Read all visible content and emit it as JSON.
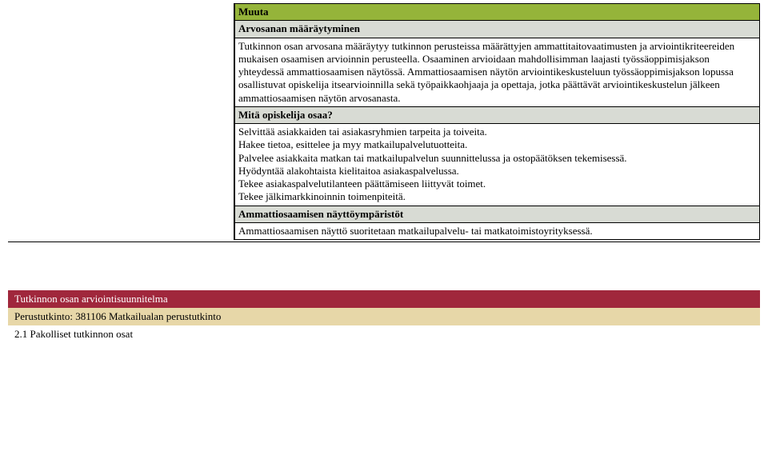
{
  "table": {
    "muuta": "Muuta",
    "arvosanan_header": "Arvosanan määräytyminen",
    "arvosanan_body": "Tutkinnon osan arvosana määräytyy tutkinnon perusteissa määrättyjen ammattitaitovaatimusten ja arviointikriteereiden mukaisen osaamisen arvioinnin perusteella. Osaaminen arvioidaan mahdollisimman laajasti työssäoppimisjakson yhteydessä ammattiosaamisen näytössä. Ammattiosaamisen näytön arviointikeskusteluun työssäoppimisjakson lopussa osallistuvat opiskelija itsearvioinnilla sekä työpaikkaohjaaja ja opettaja, jotka päättävät arviointikeskustelun jälkeen ammattiosaamisen näytön arvosanasta.",
    "mita_header": "Mitä opiskelija osaa?",
    "mita_lines": [
      "Selvittää asiakkaiden tai asiakasryhmien tarpeita ja toiveita.",
      "Hakee tietoa, esittelee ja myy matkailupalvelutuotteita.",
      "Palvelee asiakkaita matkan tai matkailupalvelun suunnittelussa ja ostopäätöksen tekemisessä.",
      "Hyödyntää alakohtaista kielitaitoa asiakaspalvelussa.",
      "Tekee asiakaspalvelutilanteen päättämiseen liittyvät toimet.",
      "Tekee jälkimarkkinoinnin toimenpiteitä."
    ],
    "nayttoymp_header": "Ammattiosaamisen näyttöympäristöt",
    "nayttoymp_body": "Ammattiosaamisen näyttö suoritetaan matkailupalvelu- tai matkatoimistoyrityksessä."
  },
  "footer": {
    "line1": "Tutkinnon osan arviointisuunnitelma",
    "line2": "Perustutkinto: 381106 Matkailualan perustutkinto",
    "line3": "2.1 Pakolliset tutkinnon osat"
  },
  "colors": {
    "green": "#95b43a",
    "gray": "#d8dbd4",
    "maroon": "#a0273c",
    "tan": "#e7d7a8"
  }
}
